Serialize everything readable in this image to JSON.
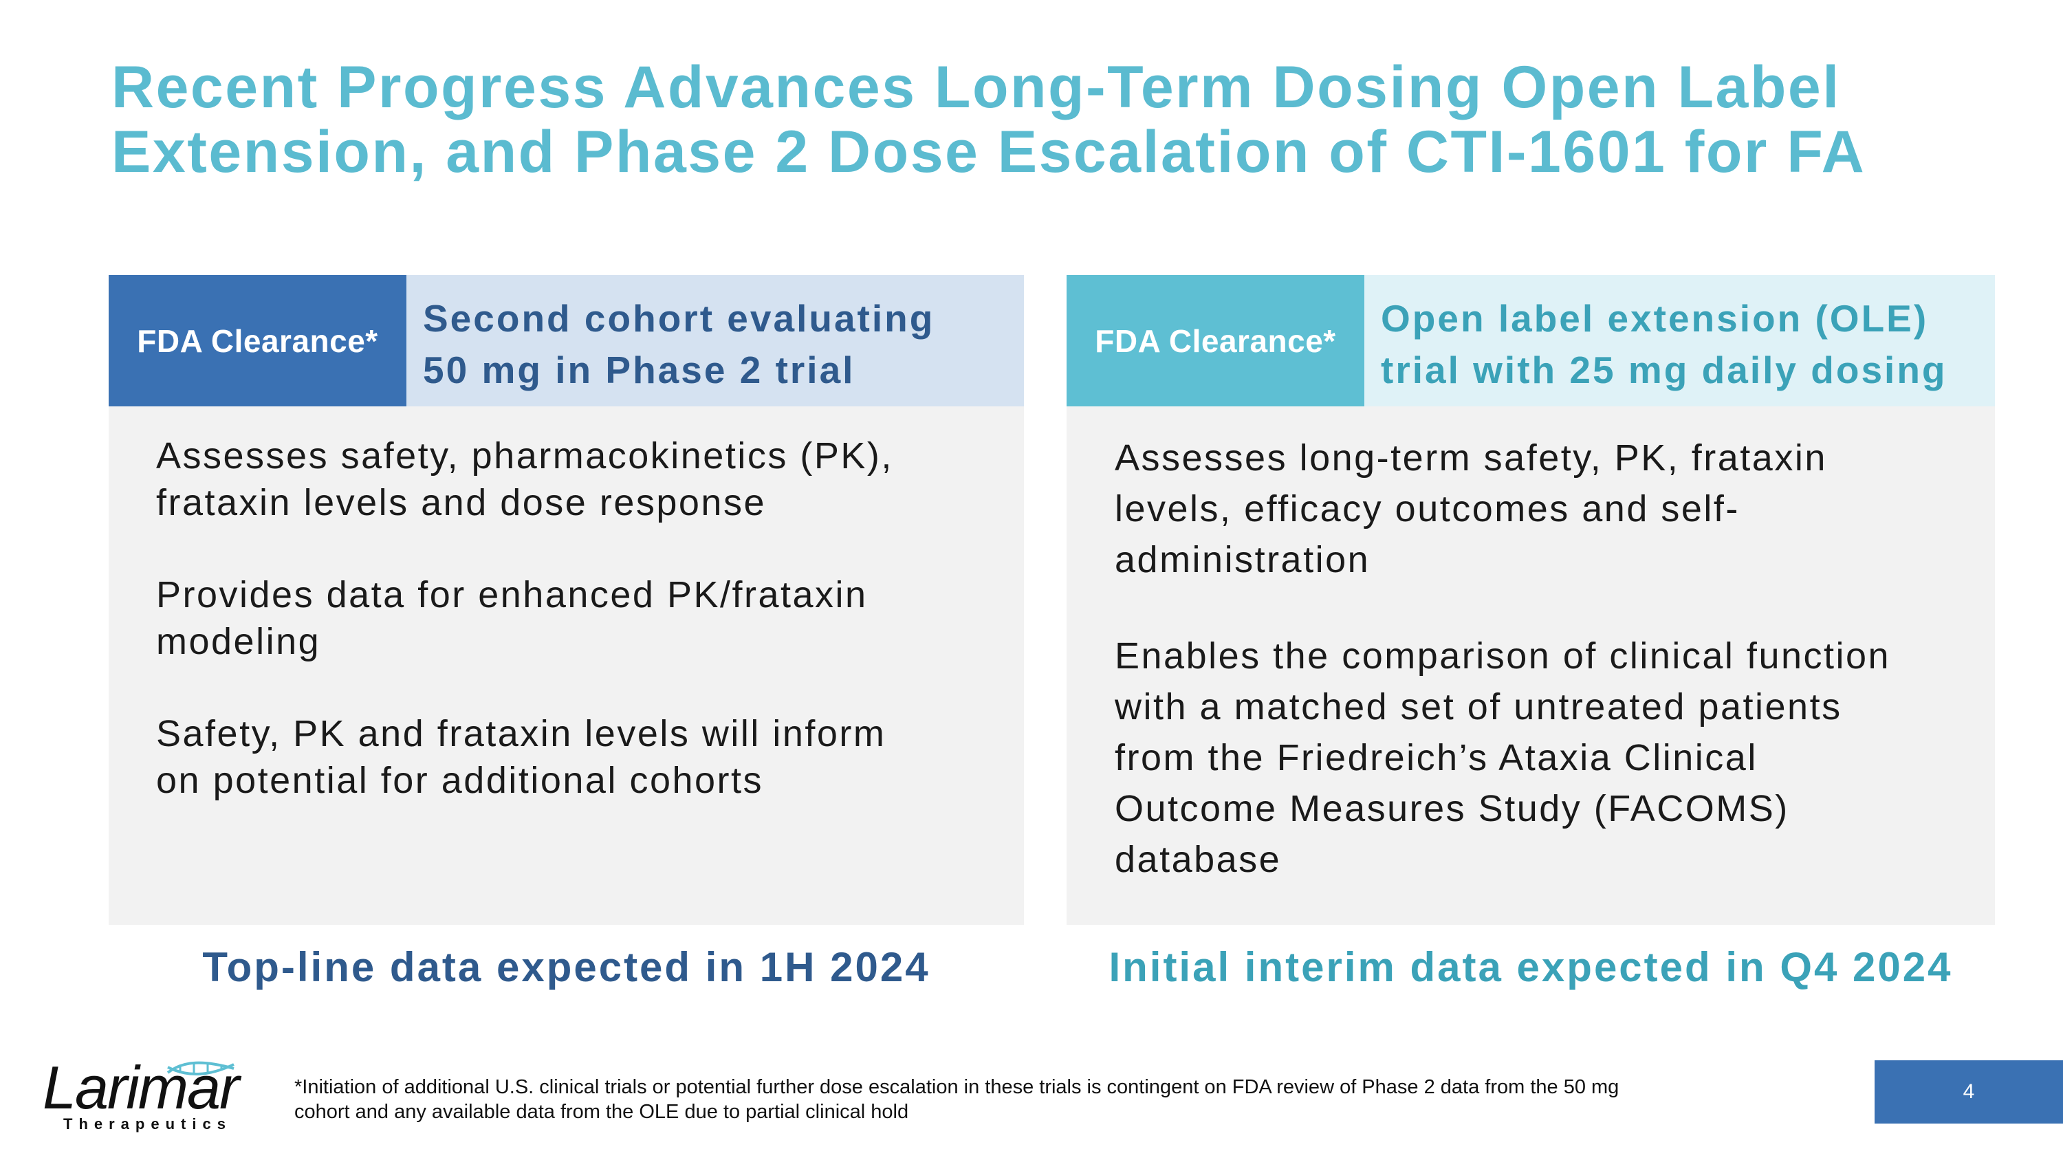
{
  "title": {
    "line1": "Recent Progress Advances Long-Term Dosing Open Label",
    "line2": "Extension, and Phase 2 Dose Escalation of CTI-1601 for FA"
  },
  "cards": [
    {
      "badge": "FDA Clearance*",
      "header_lines": [
        "Second cohort evaluating",
        "50 mg in Phase 2 trial"
      ],
      "paragraphs": [
        [
          "Assesses safety, pharmacokinetics (PK),",
          "frataxin levels and dose response"
        ],
        [
          "Provides data for enhanced PK/frataxin",
          "modeling"
        ],
        [
          "Safety, PK and frataxin levels will inform",
          "on potential for additional cohorts"
        ]
      ],
      "footline": "Top-line data expected in 1H 2024"
    },
    {
      "badge": "FDA Clearance*",
      "header_lines": [
        "Open label extension (OLE)",
        "trial with 25 mg daily dosing"
      ],
      "paragraphs": [
        [
          "Assesses long-term safety, PK, frataxin",
          "levels, efficacy outcomes and self-",
          "administration"
        ],
        [
          "Enables the comparison of clinical function",
          "with a matched set of untreated patients",
          "from the Friedreich’s Ataxia Clinical",
          "Outcome Measures Study (FACOMS)",
          "database"
        ]
      ],
      "footline": "Initial interim data expected in Q4 2024"
    }
  ],
  "footnote": {
    "line1": "*Initiation of additional U.S. clinical trials or potential further dose escalation in these trials is contingent on FDA review of Phase 2 data from the 50 mg",
    "line2": "cohort and any available data from the OLE due to partial clinical hold"
  },
  "logo": {
    "name": "Larimar",
    "subtitle": "Therapeutics"
  },
  "page_number": "4",
  "colors": {
    "title": "#5bbbd0",
    "dark_blue": "#3a71b3",
    "teal": "#5ebfd3",
    "card_bg": "#f2f2f2"
  }
}
